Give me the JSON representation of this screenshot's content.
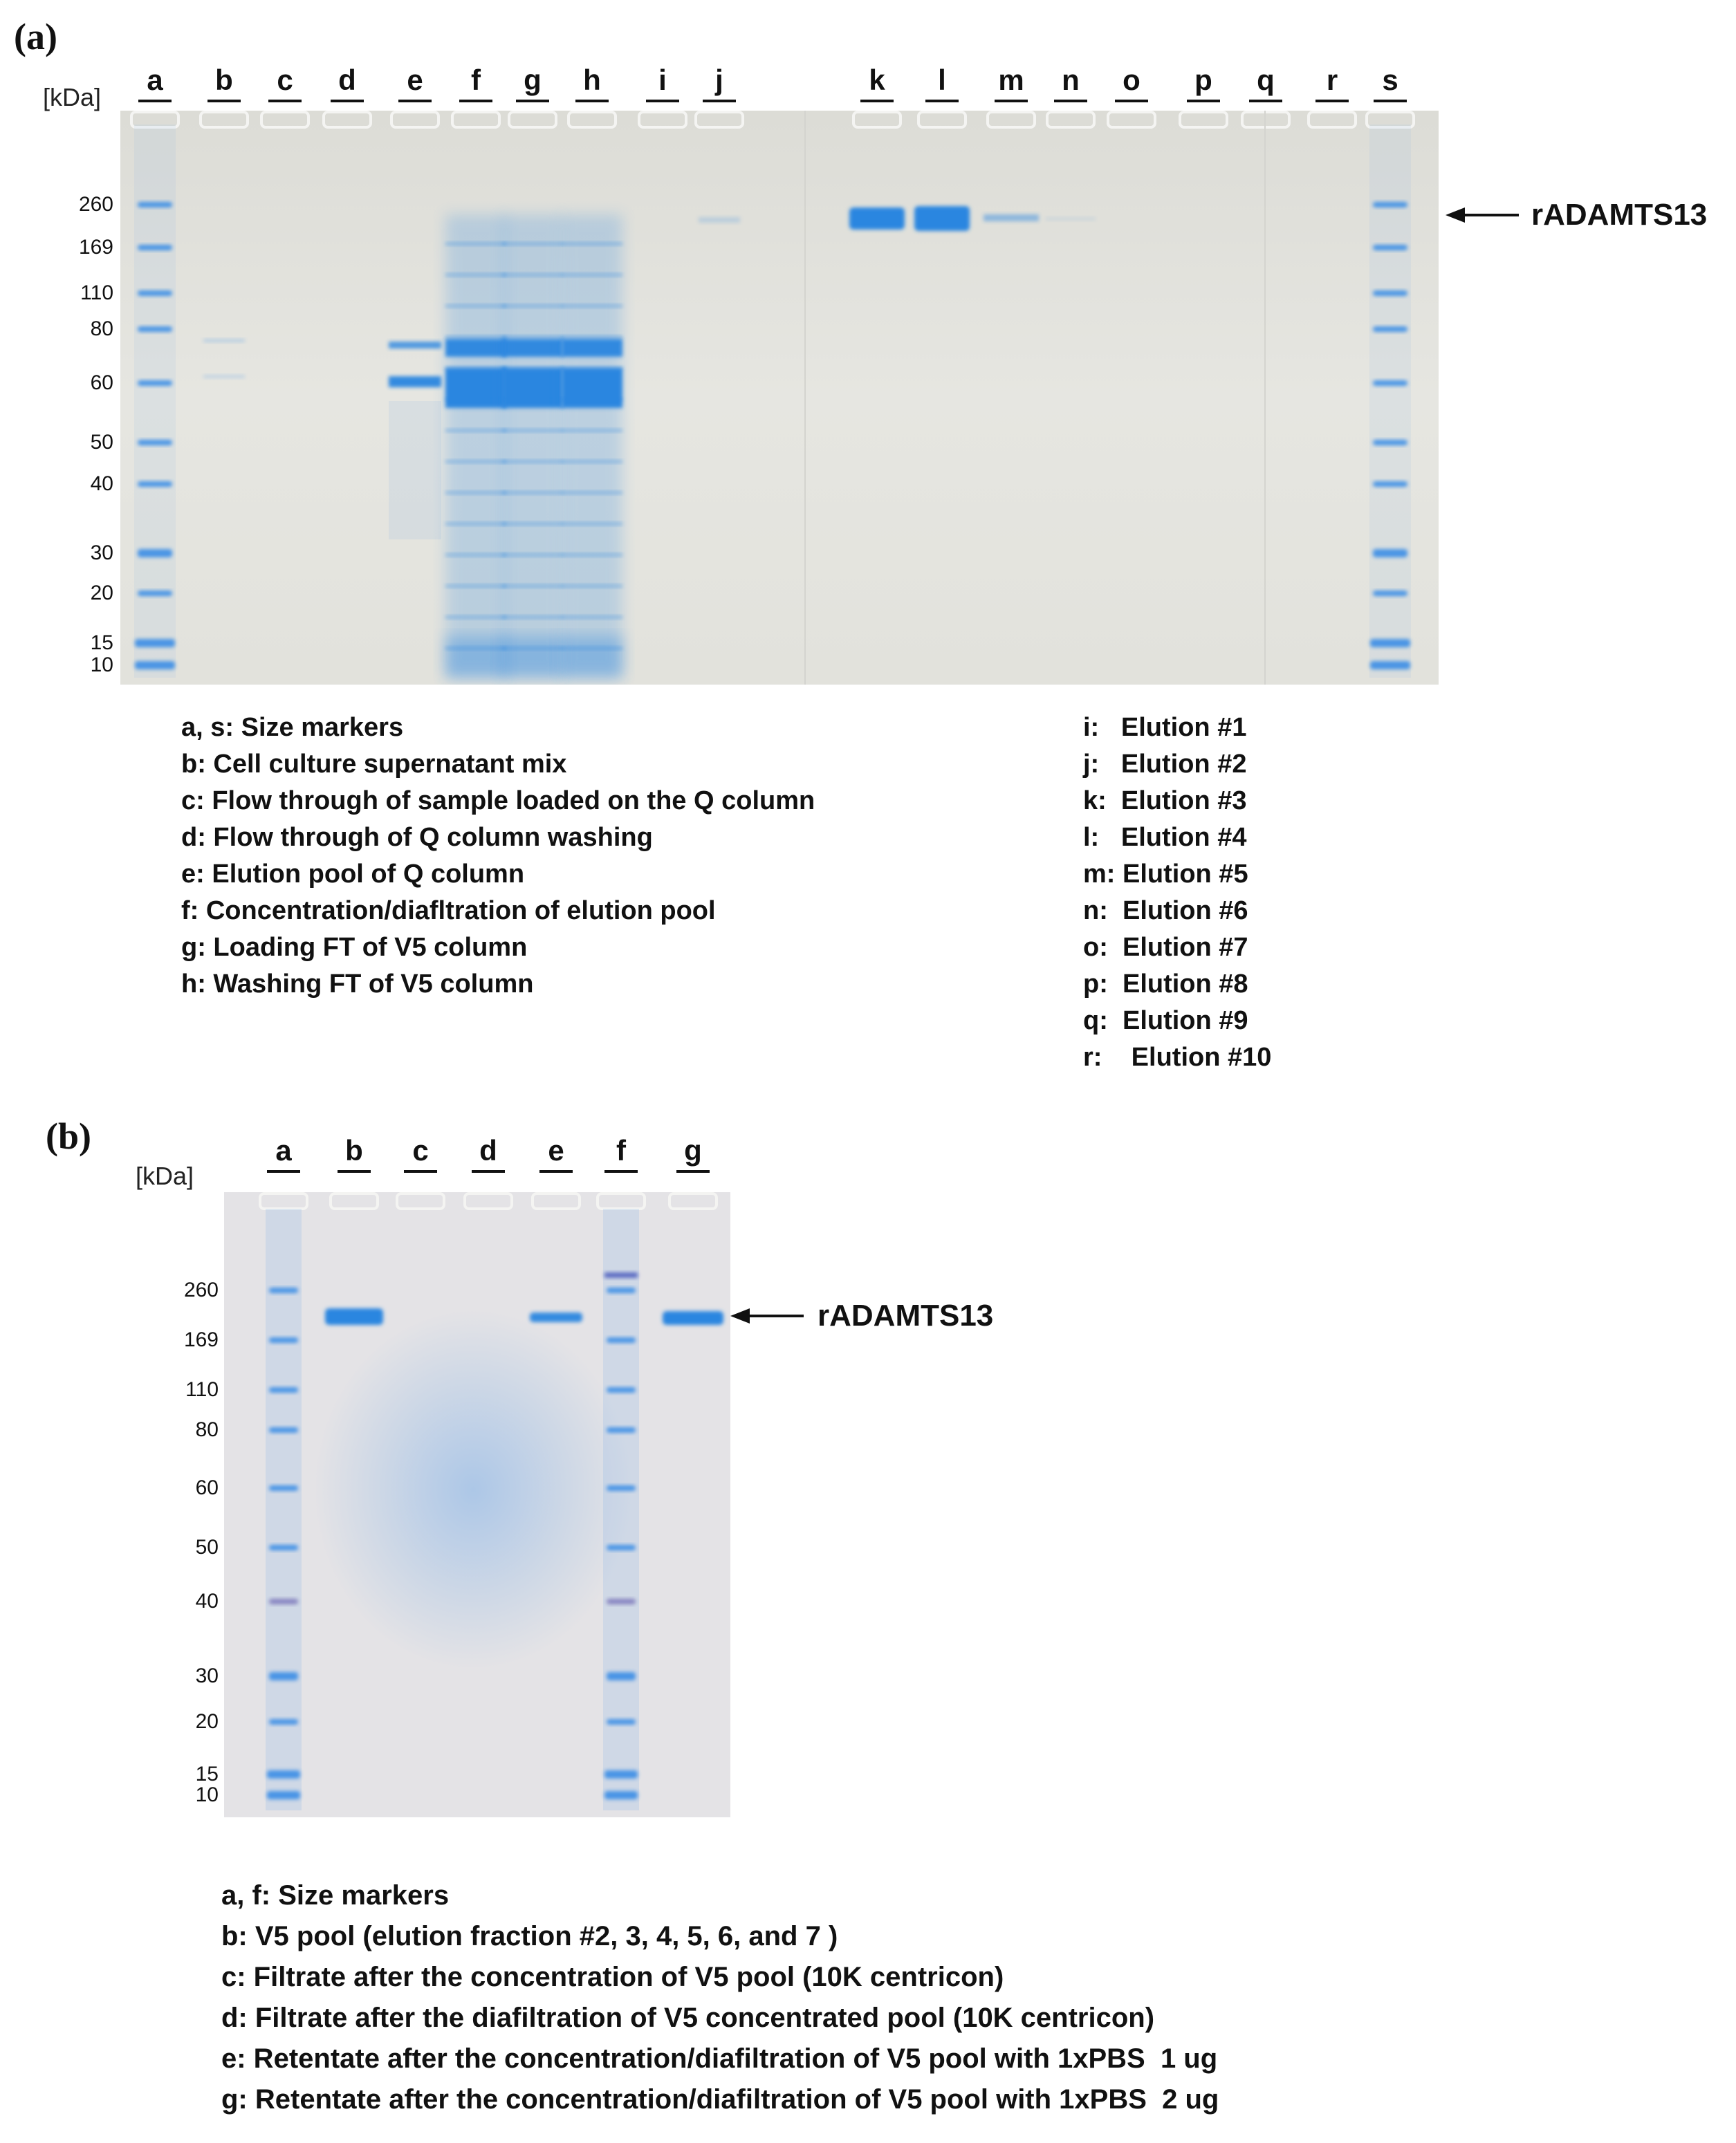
{
  "panel_a": {
    "label": "(a)",
    "kda_label": "[kDa]",
    "lanes": [
      "a",
      "b",
      "c",
      "d",
      "e",
      "f",
      "g",
      "h",
      "i",
      "j",
      "k",
      "l",
      "m",
      "n",
      "o",
      "p",
      "q",
      "r",
      "s"
    ],
    "markers": [
      "260",
      "169",
      "110",
      "80",
      "60",
      "50",
      "40",
      "30",
      "20",
      "15",
      "10"
    ],
    "arrow_text": "rADAMTS13",
    "legend_left": [
      "a, s: Size markers",
      "b: Cell culture supernatant mix",
      "c: Flow through of sample loaded on the Q column",
      "d: Flow through of Q column washing",
      "e: Elution pool of Q column",
      "f: Concentration/diafltration of elution pool",
      "g: Loading FT of V5 column",
      "h: Washing FT of V5 column"
    ],
    "legend_right": [
      "i:   Elution #1",
      "j:   Elution #2",
      "k:  Elution #3",
      "l:   Elution #4",
      "m: Elution #5",
      "n:  Elution #6",
      "o:  Elution #7",
      "p:  Elution #8",
      "q:  Elution #9",
      "r:    Elution #10"
    ]
  },
  "panel_b": {
    "label": "(b)",
    "kda_label": "[kDa]",
    "lanes": [
      "a",
      "b",
      "c",
      "d",
      "e",
      "f",
      "g"
    ],
    "markers": [
      "260",
      "169",
      "110",
      "80",
      "60",
      "50",
      "40",
      "30",
      "20",
      "15",
      "10"
    ],
    "arrow_text": "rADAMTS13",
    "legend": [
      "a, f: Size markers",
      "b: V5 pool (elution fraction #2, 3, 4, 5, 6, and 7 )",
      "c: Filtrate after the concentration of V5 pool (10K centricon)",
      "d: Filtrate after the diafiltration of V5 concentrated pool (10K centricon)",
      "e: Retentate after the concentration/diafiltration of V5 pool with 1xPBS  1 ug",
      "g: Retentate after the concentration/diafiltration of V5 pool with 1xPBS  2 ug"
    ]
  },
  "colors": {
    "gel_background": "#e6e6e2",
    "band_blue": "#2a86e0",
    "marker_blue": "#3a8ee6"
  }
}
